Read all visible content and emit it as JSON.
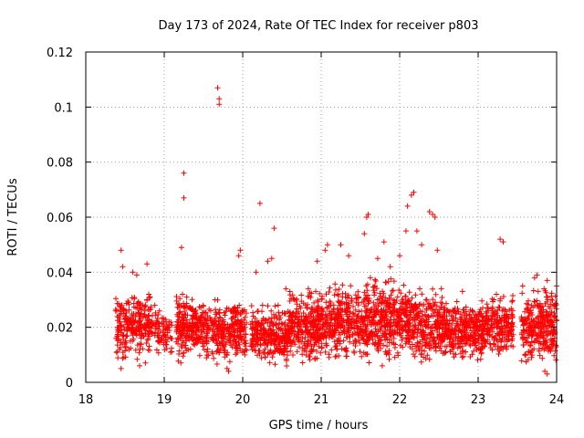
{
  "chart_data": {
    "type": "scatter",
    "title": "Day 173 of 2024, Rate Of TEC Index for receiver p803",
    "xlabel": "GPS time / hours",
    "ylabel": "ROTI / TECUs",
    "xlim": [
      18,
      24
    ],
    "ylim": [
      0,
      0.12
    ],
    "x_ticks": [
      18,
      19,
      20,
      21,
      22,
      23,
      24
    ],
    "x_tick_labels": [
      "18",
      "19",
      "20",
      "21",
      "22",
      "23",
      "24"
    ],
    "y_ticks": [
      0,
      0.02,
      0.04,
      0.06,
      0.08,
      0.1,
      0.12
    ],
    "y_tick_labels": [
      "0",
      "0.02",
      "0.04",
      "0.06",
      "0.08",
      "0.1",
      "0.12"
    ],
    "grid": true,
    "marker": "+",
    "marker_color": "#ff0000",
    "series": [
      {
        "name": "ROTI",
        "points": [
          [
            18.45,
            0.048
          ],
          [
            18.47,
            0.042
          ],
          [
            18.6,
            0.04
          ],
          [
            18.65,
            0.039
          ],
          [
            18.78,
            0.043
          ],
          [
            19.22,
            0.049
          ],
          [
            19.25,
            0.067
          ],
          [
            19.25,
            0.076
          ],
          [
            19.68,
            0.107
          ],
          [
            19.7,
            0.101
          ],
          [
            19.7,
            0.103
          ],
          [
            19.95,
            0.046
          ],
          [
            19.97,
            0.048
          ],
          [
            20.17,
            0.04
          ],
          [
            20.22,
            0.065
          ],
          [
            20.32,
            0.044
          ],
          [
            20.37,
            0.045
          ],
          [
            20.4,
            0.056
          ],
          [
            20.55,
            0.034
          ],
          [
            20.95,
            0.044
          ],
          [
            21.05,
            0.048
          ],
          [
            21.08,
            0.05
          ],
          [
            21.25,
            0.05
          ],
          [
            21.35,
            0.046
          ],
          [
            21.55,
            0.054
          ],
          [
            21.58,
            0.06
          ],
          [
            21.6,
            0.061
          ],
          [
            21.72,
            0.045
          ],
          [
            21.8,
            0.051
          ],
          [
            21.88,
            0.042
          ],
          [
            22.0,
            0.046
          ],
          [
            22.08,
            0.055
          ],
          [
            22.1,
            0.064
          ],
          [
            22.15,
            0.068
          ],
          [
            22.18,
            0.069
          ],
          [
            22.22,
            0.055
          ],
          [
            22.28,
            0.05
          ],
          [
            22.38,
            0.062
          ],
          [
            22.42,
            0.061
          ],
          [
            22.45,
            0.06
          ],
          [
            22.48,
            0.048
          ],
          [
            22.8,
            0.033
          ],
          [
            23.2,
            0.03
          ],
          [
            23.28,
            0.052
          ],
          [
            23.32,
            0.051
          ],
          [
            23.72,
            0.038
          ],
          [
            23.75,
            0.039
          ],
          [
            23.88,
            0.037
          ],
          [
            23.93,
            0.03
          ],
          [
            24.0,
            0.035
          ],
          [
            19.8,
            0.005
          ],
          [
            19.82,
            0.004
          ],
          [
            23.85,
            0.004
          ],
          [
            23.88,
            0.003
          ],
          [
            18.45,
            0.005
          ]
        ]
      }
    ],
    "dense_regions": [
      {
        "x0": 18.38,
        "x1": 18.85,
        "ymin": 0.006,
        "ymax": 0.034,
        "count": 260
      },
      {
        "x0": 18.88,
        "x1": 19.1,
        "ymin": 0.008,
        "ymax": 0.028,
        "count": 80
      },
      {
        "x0": 19.15,
        "x1": 19.48,
        "ymin": 0.007,
        "ymax": 0.032,
        "count": 220
      },
      {
        "x0": 19.48,
        "x1": 20.05,
        "ymin": 0.006,
        "ymax": 0.03,
        "count": 330
      },
      {
        "x0": 20.1,
        "x1": 20.6,
        "ymin": 0.005,
        "ymax": 0.028,
        "count": 300
      },
      {
        "x0": 20.6,
        "x1": 21.1,
        "ymin": 0.006,
        "ymax": 0.034,
        "count": 330
      },
      {
        "x0": 21.1,
        "x1": 21.6,
        "ymin": 0.007,
        "ymax": 0.036,
        "count": 330
      },
      {
        "x0": 21.6,
        "x1": 22.1,
        "ymin": 0.006,
        "ymax": 0.038,
        "count": 340
      },
      {
        "x0": 22.1,
        "x1": 22.6,
        "ymin": 0.006,
        "ymax": 0.034,
        "count": 330
      },
      {
        "x0": 22.6,
        "x1": 23.1,
        "ymin": 0.007,
        "ymax": 0.03,
        "count": 320
      },
      {
        "x0": 23.1,
        "x1": 23.45,
        "ymin": 0.008,
        "ymax": 0.032,
        "count": 200
      },
      {
        "x0": 23.55,
        "x1": 24.0,
        "ymin": 0.005,
        "ymax": 0.035,
        "count": 300
      }
    ]
  }
}
